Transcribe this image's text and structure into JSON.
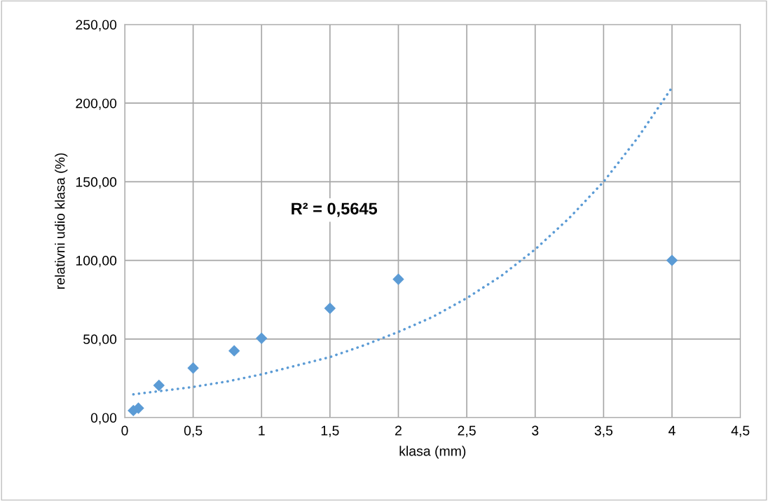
{
  "chart_data": {
    "type": "scatter",
    "xlabel": "klasa (mm)",
    "ylabel": "relativni udio klasa (%)",
    "annotations": [
      "R² = 0,5645"
    ],
    "series": [
      {
        "color": "#5b9bd5",
        "marker": "diamond",
        "x": [
          0.063,
          0.1,
          0.25,
          0.5,
          0.8,
          1,
          1.5,
          2,
          4
        ],
        "values": [
          4.5,
          6,
          20.5,
          31.5,
          42.5,
          50.5,
          69.5,
          88,
          100
        ]
      },
      {
        "type": "line",
        "color": "#5b9bd5",
        "line_style": "dotted",
        "marker": "none",
        "x": [
          0.063,
          0.25,
          0.5,
          0.75,
          1,
          1.25,
          1.5,
          1.75,
          2,
          2.25,
          2.5,
          2.75,
          3,
          3.25,
          3.5,
          3.75,
          4
        ],
        "values": [
          14.8,
          16.8,
          19.5,
          23,
          27.5,
          33,
          38.5,
          46,
          54.5,
          64,
          76,
          90,
          107,
          127,
          150,
          178,
          210
        ]
      }
    ],
    "xlim": [
      0,
      4.5
    ],
    "xticks": [
      0,
      {
        "value": 0.5,
        "label": "0,5"
      },
      1,
      {
        "value": 1.5,
        "label": "1,5"
      },
      2,
      {
        "value": 2.5,
        "label": "2,5"
      },
      3,
      {
        "value": 3.5,
        "label": "3,5"
      },
      4,
      {
        "value": 4.5,
        "label": "4,5"
      }
    ],
    "ylim": [
      0,
      250
    ],
    "yticks": [
      {
        "value": 0,
        "label": "0,00"
      },
      {
        "value": 50,
        "label": "50,00"
      },
      {
        "value": 100,
        "label": "100,00"
      },
      {
        "value": 150,
        "label": "150,00"
      },
      {
        "value": 200,
        "label": "200,00"
      },
      {
        "value": 250,
        "label": "250,00"
      }
    ],
    "grid": true
  }
}
